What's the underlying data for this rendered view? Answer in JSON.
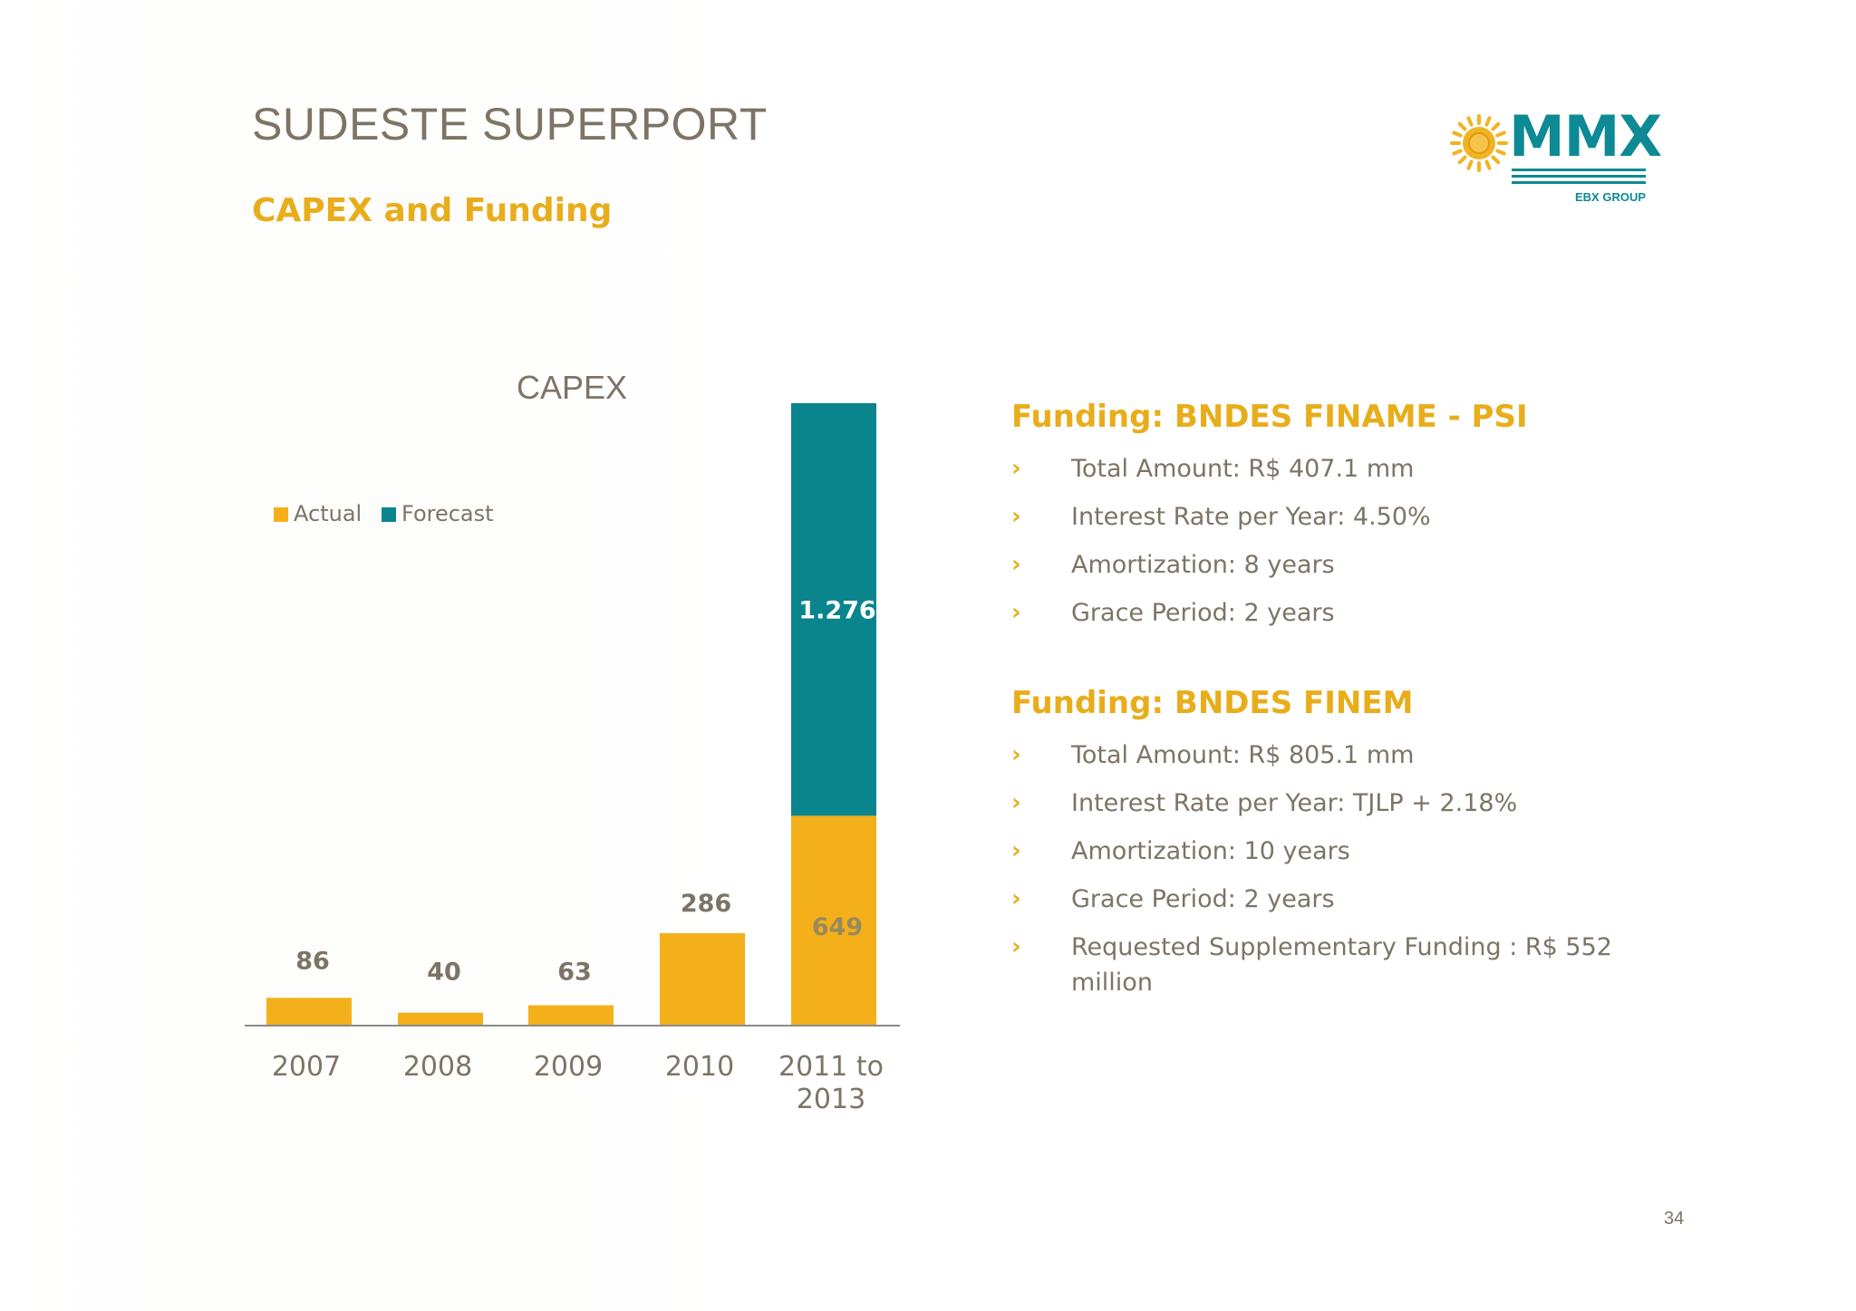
{
  "header": {
    "title": "SUDESTE SUPERPORT",
    "subtitle": "CAPEX and Funding"
  },
  "logo": {
    "word": "MMX",
    "tagline": "EBX GROUP",
    "icon": "sun-icon"
  },
  "colors": {
    "actual": "#f4b01b",
    "forecast": "#0a858d",
    "accent": "#e8ad1b",
    "text": "#7d7466"
  },
  "chart_data": {
    "type": "bar",
    "stacked": true,
    "title": "CAPEX",
    "categories": [
      "2007",
      "2008",
      "2009",
      "2010",
      "2011 to 2013"
    ],
    "series": [
      {
        "name": "Actual",
        "values": [
          86,
          40,
          63,
          286,
          649
        ],
        "labels": [
          "86",
          "40",
          "63",
          "286",
          "649"
        ]
      },
      {
        "name": "Forecast",
        "values": [
          null,
          null,
          null,
          null,
          1276
        ],
        "labels": [
          "",
          "",
          "",
          "",
          "1.276"
        ]
      }
    ],
    "legend": "top-left",
    "grid": false
  },
  "funding": [
    {
      "title": "Funding: BNDES FINAME - PSI",
      "items": [
        "Total Amount: R$ 407.1 mm",
        "Interest Rate per Year: 4.50%",
        "Amortization: 8 years",
        "Grace Period: 2 years"
      ]
    },
    {
      "title": "Funding: BNDES FINEM",
      "items": [
        "Total Amount: R$ 805.1 mm",
        "Interest Rate per Year: TJLP + 2.18%",
        "Amortization: 10 years",
        "Grace Period: 2 years",
        "Requested Supplementary Funding : R$ 552 million"
      ]
    }
  ],
  "bullet_glyph": "›",
  "page_number": "34"
}
